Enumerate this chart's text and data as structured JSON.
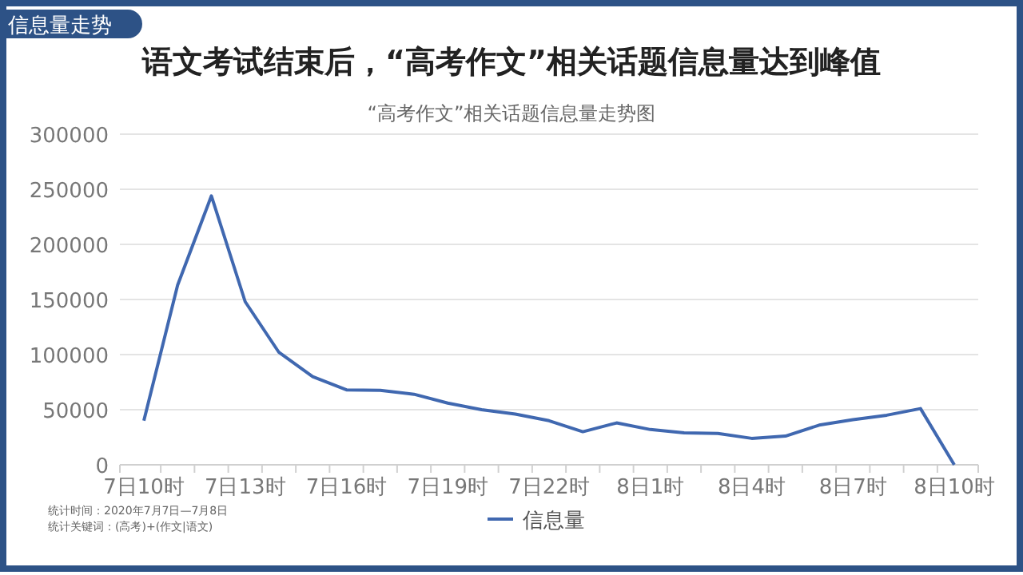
{
  "chart_data": {
    "type": "line",
    "title": "语文考试结束后，“高考作文”相关话题信息量达到峰值",
    "subtitle": "“高考作文”相关话题信息量走势图",
    "categories": [
      "7日10时",
      null,
      null,
      "7日13时",
      null,
      null,
      "7日16时",
      null,
      null,
      "7日19时",
      null,
      null,
      "7日22时",
      null,
      null,
      "8日1时",
      null,
      null,
      "8日4时",
      null,
      null,
      "8日7时",
      null,
      null,
      "8日10时"
    ],
    "series": [
      {
        "name": "信息量",
        "color": "#4068b0",
        "values": [
          40000,
          163000,
          244000,
          148000,
          102000,
          80000,
          68000,
          67500,
          64000,
          56000,
          50000,
          46000,
          40000,
          30000,
          38000,
          32000,
          29000,
          28500,
          24000,
          26000,
          36000,
          41000,
          45000,
          51000,
          0
        ]
      }
    ],
    "ylim": [
      0,
      300000
    ],
    "yticks": [
      0,
      50000,
      100000,
      150000,
      200000,
      250000,
      300000
    ],
    "grid": "y",
    "legend": "bottom",
    "marker": "none",
    "line_style": "solid",
    "annotations": [
      "信息量走势",
      "统计时间：2020年7月7日—7月8日",
      "统计关键词：(高考)+(作文|语文)"
    ]
  }
}
